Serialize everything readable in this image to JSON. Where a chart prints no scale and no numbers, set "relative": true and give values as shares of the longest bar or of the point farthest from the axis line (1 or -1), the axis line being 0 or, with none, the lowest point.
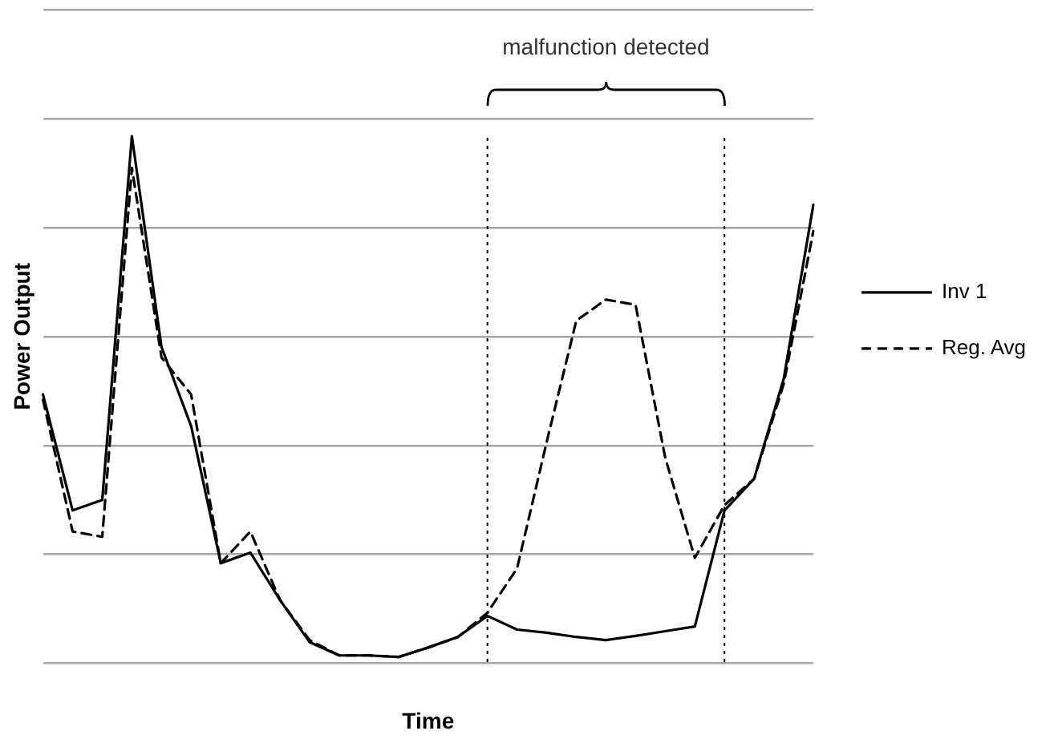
{
  "chart_data": {
    "type": "line",
    "relative": true,
    "xlabel": "Time",
    "ylabel": "Power Output",
    "categories": [
      null,
      null,
      null,
      null,
      null,
      null,
      null,
      null,
      null,
      null,
      null,
      null,
      null,
      null,
      null,
      null,
      null,
      null,
      null,
      null,
      null,
      null,
      null,
      null,
      null,
      null,
      null
    ],
    "grid": "y",
    "legend": "right",
    "marker": "none",
    "series": [
      {
        "name": "Inv 1",
        "color": "#000000",
        "line_style": "solid",
        "values": [
          0.51,
          0.29,
          0.31,
          1,
          0.6,
          0.45,
          0.19,
          0.21,
          0.12,
          0.04,
          0.015,
          0.015,
          0.012,
          0.03,
          0.05,
          0.09,
          0.064,
          0.058,
          0.05,
          0.044,
          0.052,
          0.061,
          0.07,
          0.29,
          0.35,
          0.54,
          0.87
        ]
      },
      {
        "name": "Reg. Avg",
        "color": "#000000",
        "line_style": "dashed",
        "values": [
          0.5,
          0.25,
          0.24,
          0.94,
          0.58,
          0.51,
          0.19,
          0.25,
          0.12,
          0.044,
          0.015,
          0.015,
          0.012,
          0.03,
          0.05,
          0.096,
          0.18,
          0.42,
          0.65,
          0.69,
          0.68,
          0.39,
          0.2,
          0.3,
          0.35,
          0.53,
          0.82
        ]
      }
    ],
    "annotations": [
      "malfunction detected"
    ]
  }
}
